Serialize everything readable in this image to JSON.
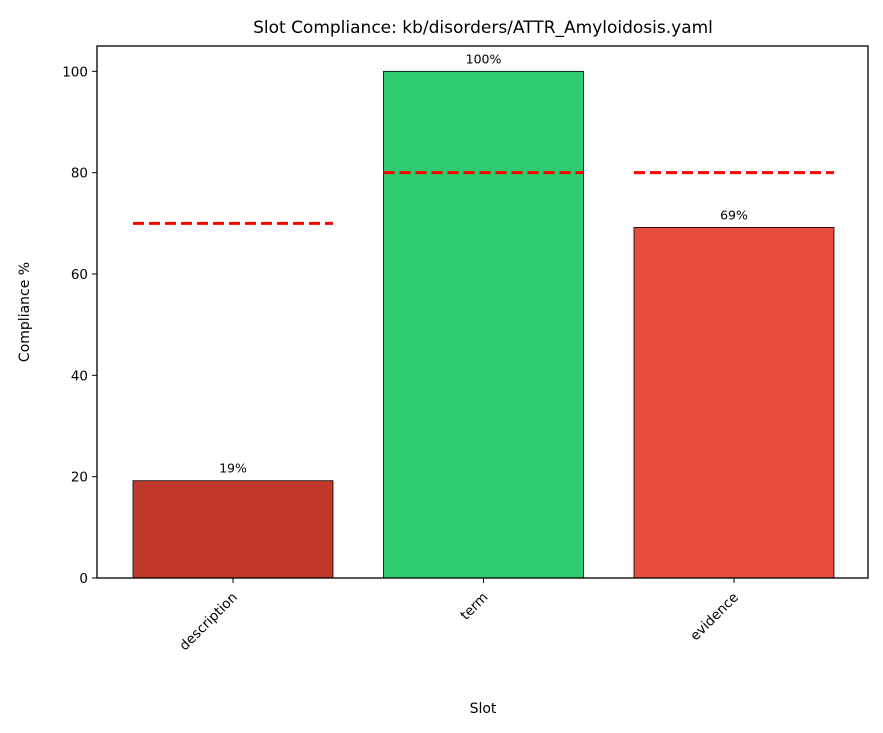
{
  "chart_data": {
    "type": "bar",
    "title": "Slot Compliance: kb/disorders/ATTR_Amyloidosis.yaml",
    "xlabel": "Slot",
    "ylabel": "Compliance %",
    "categories": [
      "description",
      "term",
      "evidence"
    ],
    "values": [
      19.2,
      100,
      69.2
    ],
    "value_labels": [
      "19%",
      "100%",
      "69%"
    ],
    "bar_colors": [
      "#c0392b",
      "#2ecc71",
      "#e74c3c"
    ],
    "thresholds": [
      70,
      80,
      80
    ],
    "threshold_color": "#ff0000",
    "threshold_style": "dashed",
    "ylim": [
      0,
      105
    ],
    "yticks": [
      0,
      20,
      40,
      60,
      80,
      100
    ],
    "grid": false,
    "legend": null,
    "xtick_rotation": 45
  }
}
